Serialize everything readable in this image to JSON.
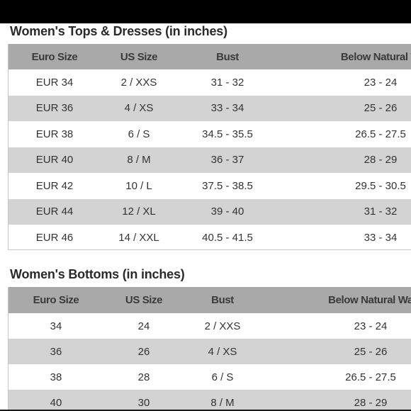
{
  "tops": {
    "title": "Women's Tops & Dresses (in inches)",
    "headers": [
      "Euro Size",
      "US Size",
      "Bust",
      "Below Natural W"
    ],
    "rows": [
      [
        "EUR 34",
        "2 / XXS",
        "31 - 32",
        "23 - 24"
      ],
      [
        "EUR 36",
        "4 / XS",
        "33 - 34",
        "25 - 26"
      ],
      [
        "EUR 38",
        "6 / S",
        "34.5 - 35.5",
        "26.5 - 27.5"
      ],
      [
        "EUR 40",
        "8 / M",
        "36 - 37",
        "28 - 29"
      ],
      [
        "EUR 42",
        "10 / L",
        "37.5 - 38.5",
        "29.5 - 30.5"
      ],
      [
        "EUR 44",
        "12 / XL",
        "39 - 40",
        "31 - 32"
      ],
      [
        "EUR 46",
        "14 / XXL",
        "40.5 - 41.5",
        "33 - 34"
      ]
    ]
  },
  "bottoms": {
    "title": "Women's Bottoms (in inches)",
    "headers": [
      "Euro Size",
      "US Size",
      "Bust",
      "Below Natural Wa"
    ],
    "rows": [
      [
        "34",
        "24",
        "2 / XXS",
        "23 - 24"
      ],
      [
        "36",
        "26",
        "4 / XS",
        "25 - 26"
      ],
      [
        "38",
        "28",
        "6 / S",
        "26.5 - 27.5"
      ],
      [
        "40",
        "30",
        "8 / M",
        "28 - 29"
      ]
    ]
  },
  "colors": {
    "header_row": "#a9a9a9",
    "shaded_row": "#d3d3d3",
    "plain_row": "#ffffff",
    "top_bar": "#000000"
  }
}
